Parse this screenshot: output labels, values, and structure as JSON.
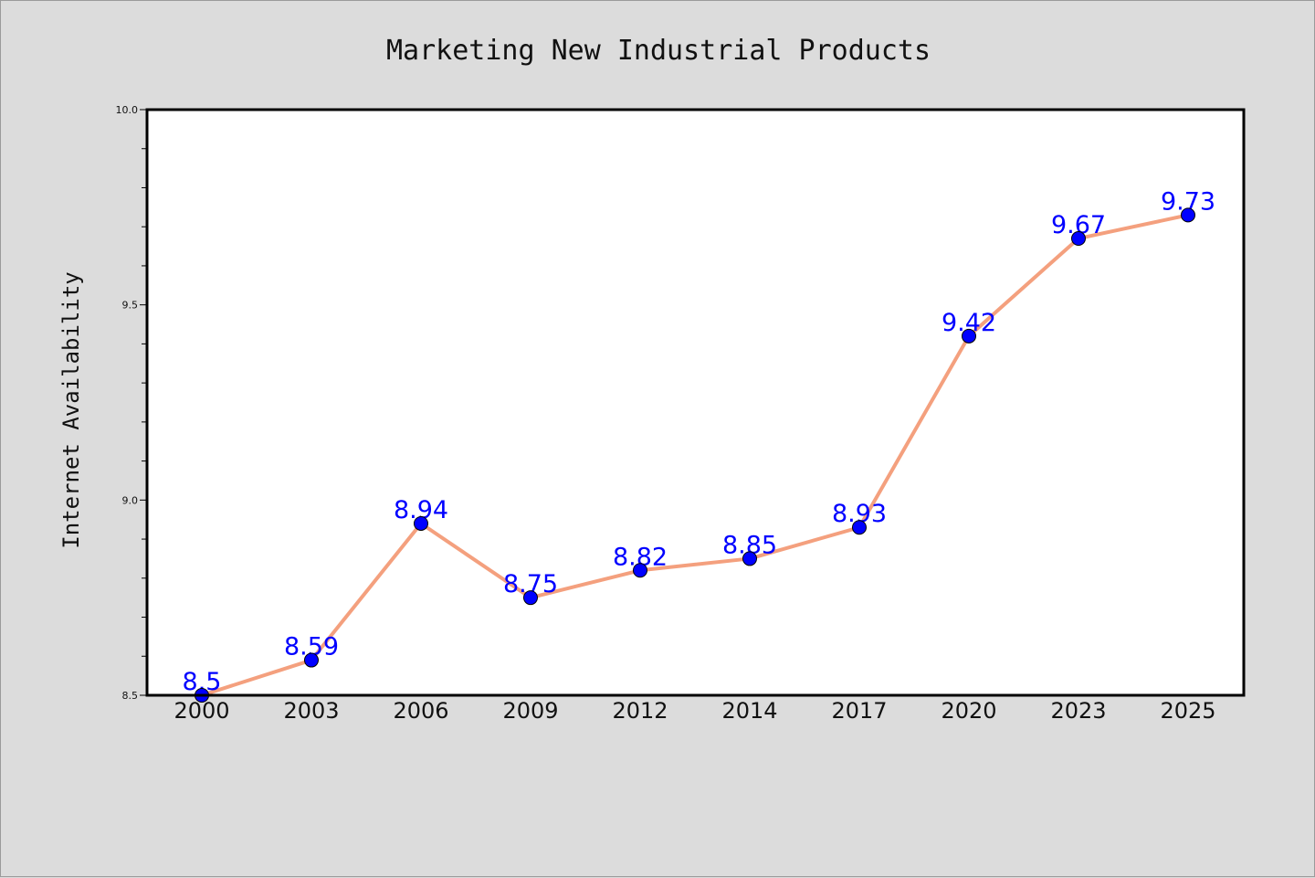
{
  "chart_data": {
    "type": "line",
    "title": "Marketing New Industrial Products",
    "xlabel": "",
    "ylabel": "Internet Availability",
    "categories": [
      "2000",
      "2003",
      "2006",
      "2009",
      "2012",
      "2014",
      "2017",
      "2020",
      "2023",
      "2025"
    ],
    "series": [
      {
        "values": [
          8.5,
          8.59,
          8.94,
          8.75,
          8.82,
          8.85,
          8.93,
          9.42,
          9.67,
          9.73
        ],
        "labels": [
          "8.5",
          "8.59",
          "8.94",
          "8.75",
          "8.82",
          "8.85",
          "8.93",
          "9.42",
          "9.67",
          "9.73"
        ],
        "line_color": "#f4a07e",
        "marker_color": "#0000ff"
      }
    ],
    "ylim": [
      8.5,
      10.0
    ],
    "yticks": [
      "8.5",
      "9.0",
      "9.5",
      "10.0"
    ],
    "grid": false,
    "background": "#dcdcdc",
    "plot_background": "#ffffff"
  }
}
